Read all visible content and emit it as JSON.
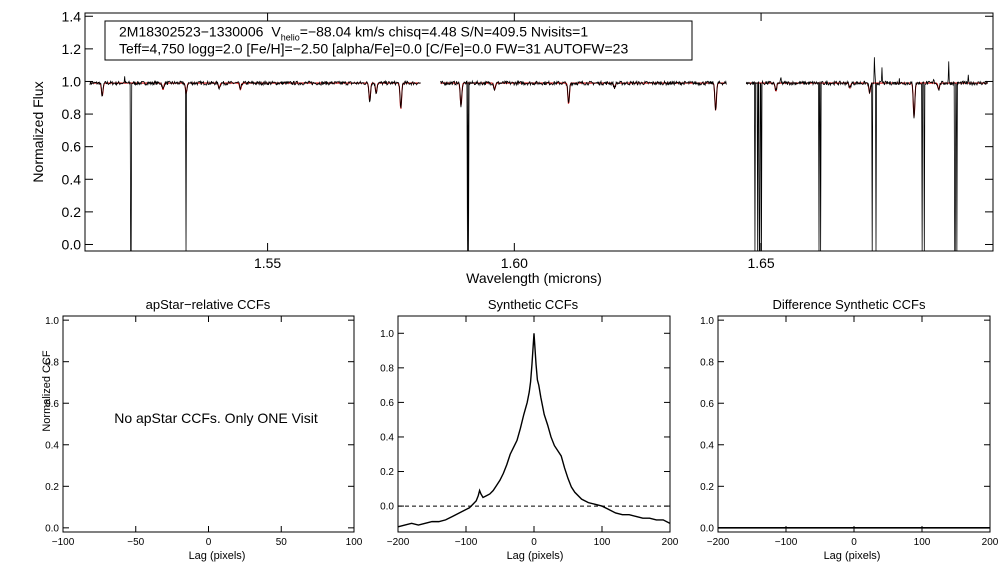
{
  "spectrum_panel": {
    "info_line1": {
      "star_id": "2M18302523−1330006",
      "v_symbol": "V",
      "v_subscript": "helio",
      "rest": "=−88.04 km/s  chisq=4.48  S/N=409.5  Nvisits=1"
    },
    "info_line2": "Teff=4,750 logg=2.0 [Fe/H]=−2.50 [alpha/Fe]=0.0 [C/Fe]=0.0 FW=31 AUTOFW=23"
  },
  "ccf_panels": {
    "no_ccf_message": "No apStar CCFs.  Only ONE Visit"
  },
  "colors": {
    "observed": "#000000",
    "model": "#cc0000",
    "zero_line": "#000000"
  },
  "chart_data": [
    {
      "type": "line",
      "panel": "spectrum",
      "title": "",
      "xlabel": "Wavelength (microns)",
      "ylabel": "Normalized Flux",
      "xlim": [
        1.513,
        1.697
      ],
      "ylim": [
        -0.04,
        1.42
      ],
      "xticks": [
        1.55,
        1.6,
        1.65
      ],
      "xtick_labels": [
        "1.55",
        "1.60",
        "1.65"
      ],
      "yticks": [
        0.0,
        0.2,
        0.4,
        0.6,
        0.8,
        1.0,
        1.2,
        1.4
      ],
      "ytick_labels": [
        "0.0",
        "0.2",
        "0.4",
        "0.6",
        "0.8",
        "1.0",
        "1.2",
        "1.4"
      ],
      "chips": [
        [
          1.514,
          1.581
        ],
        [
          1.585,
          1.643
        ],
        [
          1.647,
          1.696
        ]
      ],
      "continuum": 0.99,
      "noise": 0.012,
      "series": [
        {
          "name": "observed",
          "color": "#000000",
          "bad_pixels": [
            1.5223,
            1.5335,
            1.5905,
            1.5907,
            1.6488,
            1.6493,
            1.6497,
            1.6501,
            1.6617,
            1.6621,
            1.6725,
            1.6733,
            1.6826,
            1.6831,
            1.6893,
            1.6897
          ],
          "absorption_lines": [
            {
              "wl": 1.5165,
              "depth": 0.08
            },
            {
              "wl": 1.5288,
              "depth": 0.04
            },
            {
              "wl": 1.5335,
              "depth": 0.06
            },
            {
              "wl": 1.5402,
              "depth": 0.03
            },
            {
              "wl": 1.5445,
              "depth": 0.04
            },
            {
              "wl": 1.5707,
              "depth": 0.11
            },
            {
              "wl": 1.572,
              "depth": 0.06
            },
            {
              "wl": 1.577,
              "depth": 0.16
            },
            {
              "wl": 1.5892,
              "depth": 0.14
            },
            {
              "wl": 1.596,
              "depth": 0.04
            },
            {
              "wl": 1.611,
              "depth": 0.13
            },
            {
              "wl": 1.6203,
              "depth": 0.03
            },
            {
              "wl": 1.6408,
              "depth": 0.17
            },
            {
              "wl": 1.653,
              "depth": 0.05
            },
            {
              "wl": 1.668,
              "depth": 0.03
            },
            {
              "wl": 1.672,
              "depth": 0.06
            },
            {
              "wl": 1.681,
              "depth": 0.21
            },
            {
              "wl": 1.686,
              "depth": 0.04
            }
          ],
          "emission_spikes": [
            {
              "wl": 1.521,
              "height": 0.05
            },
            {
              "wl": 1.654,
              "height": 0.05
            },
            {
              "wl": 1.673,
              "height": 0.23
            },
            {
              "wl": 1.6745,
              "height": 0.1
            },
            {
              "wl": 1.678,
              "height": 0.04
            },
            {
              "wl": 1.685,
              "height": 0.06
            },
            {
              "wl": 1.688,
              "height": 0.17
            },
            {
              "wl": 1.692,
              "height": 0.04
            }
          ]
        },
        {
          "name": "model",
          "color": "#cc0000",
          "absorption_lines": [
            {
              "wl": 1.5165,
              "depth": 0.08
            },
            {
              "wl": 1.5288,
              "depth": 0.04
            },
            {
              "wl": 1.5335,
              "depth": 0.06
            },
            {
              "wl": 1.5402,
              "depth": 0.03
            },
            {
              "wl": 1.5445,
              "depth": 0.04
            },
            {
              "wl": 1.5707,
              "depth": 0.11
            },
            {
              "wl": 1.572,
              "depth": 0.06
            },
            {
              "wl": 1.577,
              "depth": 0.16
            },
            {
              "wl": 1.5892,
              "depth": 0.14
            },
            {
              "wl": 1.596,
              "depth": 0.04
            },
            {
              "wl": 1.611,
              "depth": 0.13
            },
            {
              "wl": 1.6203,
              "depth": 0.03
            },
            {
              "wl": 1.6408,
              "depth": 0.17
            },
            {
              "wl": 1.653,
              "depth": 0.05
            },
            {
              "wl": 1.668,
              "depth": 0.03
            },
            {
              "wl": 1.672,
              "depth": 0.06
            },
            {
              "wl": 1.681,
              "depth": 0.21
            },
            {
              "wl": 1.686,
              "depth": 0.04
            }
          ]
        }
      ]
    },
    {
      "type": "line",
      "panel": "apstar_ccf",
      "title": "apStar−relative CCFs",
      "xlabel": "Lag (pixels)",
      "ylabel": "Normalized CCF",
      "xlim": [
        -100,
        100
      ],
      "ylim": [
        -0.02,
        1.02
      ],
      "xticks": [
        -100,
        -50,
        0,
        50,
        100
      ],
      "xtick_labels": [
        "−100",
        "−50",
        "0",
        "50",
        "100"
      ],
      "yticks": [
        0.0,
        0.2,
        0.4,
        0.6,
        0.8,
        1.0
      ],
      "ytick_labels": [
        "0.0",
        "0.2",
        "0.4",
        "0.6",
        "0.8",
        "1.0"
      ],
      "series": []
    },
    {
      "type": "line",
      "panel": "synthetic_ccf",
      "title": "Synthetic CCFs",
      "xlabel": "Lag (pixels)",
      "ylabel": "",
      "xlim": [
        -200,
        200
      ],
      "ylim": [
        -0.15,
        1.1
      ],
      "xticks": [
        -200,
        -100,
        0,
        100,
        200
      ],
      "xtick_labels": [
        "−200",
        "−100",
        "0",
        "100",
        "200"
      ],
      "yticks": [
        0.0,
        0.2,
        0.4,
        0.6,
        0.8,
        1.0
      ],
      "ytick_labels": [
        "0.0",
        "0.2",
        "0.4",
        "0.6",
        "0.8",
        "1.0"
      ],
      "reference_line": {
        "y": 0.0,
        "style": "dashed"
      },
      "series": [
        {
          "name": "ccf",
          "x": [
            -200,
            -190,
            -180,
            -170,
            -160,
            -150,
            -140,
            -130,
            -120,
            -110,
            -100,
            -95,
            -90,
            -85,
            -82,
            -80,
            -78,
            -75,
            -70,
            -65,
            -60,
            -55,
            -50,
            -45,
            -40,
            -35,
            -30,
            -25,
            -20,
            -15,
            -10,
            -7,
            -5,
            -3,
            -1,
            0,
            1,
            3,
            5,
            7,
            10,
            15,
            20,
            25,
            30,
            35,
            40,
            45,
            50,
            55,
            60,
            70,
            80,
            90,
            100,
            110,
            120,
            130,
            140,
            150,
            160,
            170,
            180,
            190,
            200
          ],
          "y": [
            -0.12,
            -0.11,
            -0.1,
            -0.11,
            -0.1,
            -0.09,
            -0.09,
            -0.08,
            -0.06,
            -0.04,
            -0.02,
            -0.01,
            0.01,
            0.03,
            0.06,
            0.09,
            0.07,
            0.05,
            0.06,
            0.07,
            0.09,
            0.12,
            0.15,
            0.19,
            0.24,
            0.3,
            0.34,
            0.38,
            0.45,
            0.53,
            0.6,
            0.66,
            0.72,
            0.82,
            0.94,
            1.0,
            0.94,
            0.82,
            0.73,
            0.7,
            0.63,
            0.53,
            0.47,
            0.4,
            0.35,
            0.32,
            0.29,
            0.22,
            0.16,
            0.11,
            0.08,
            0.04,
            0.02,
            0.01,
            0.0,
            -0.02,
            -0.04,
            -0.05,
            -0.05,
            -0.06,
            -0.07,
            -0.07,
            -0.08,
            -0.08,
            -0.1
          ]
        }
      ]
    },
    {
      "type": "line",
      "panel": "difference_ccf",
      "title": "Difference Synthetic CCFs",
      "xlabel": "Lag (pixels)",
      "ylabel": "",
      "xlim": [
        -200,
        200
      ],
      "ylim": [
        -0.02,
        1.02
      ],
      "xticks": [
        -200,
        -100,
        0,
        100,
        200
      ],
      "xtick_labels": [
        "−200",
        "−100",
        "0",
        "100",
        "200"
      ],
      "yticks": [
        0.0,
        0.2,
        0.4,
        0.6,
        0.8,
        1.0
      ],
      "ytick_labels": [
        "0.0",
        "0.2",
        "0.4",
        "0.6",
        "0.8",
        "1.0"
      ],
      "series": [
        {
          "name": "difference",
          "x": [
            -200,
            200
          ],
          "y": [
            0.0,
            0.0
          ]
        }
      ]
    }
  ]
}
